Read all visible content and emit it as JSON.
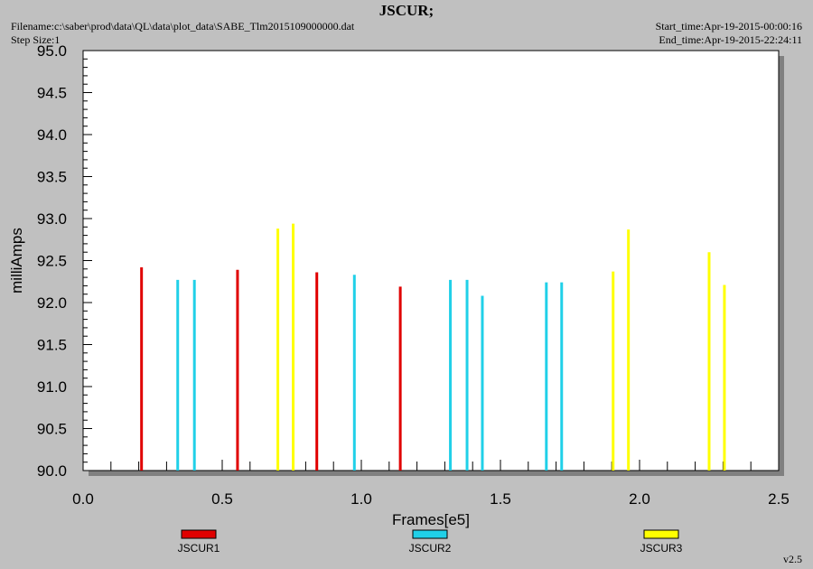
{
  "header": {
    "title": "JSCUR;",
    "filename": "Filename:c:\\saber\\prod\\data\\QL\\data\\plot_data\\SABE_Tlm2015109000000.dat",
    "step_size": "Step Size:1",
    "start_time": "Start_time:Apr-19-2015-00:00:16",
    "end_time": "End_time:Apr-19-2015-22:24:11",
    "version": "v2.5"
  },
  "chart_data": {
    "type": "bar",
    "title": "JSCUR;",
    "xlabel": "Frames[e5]",
    "ylabel": "milliAmps",
    "xlim": [
      0.0,
      2.5
    ],
    "ylim": [
      90.0,
      95.0
    ],
    "xticks": [
      "0.0",
      "0.5",
      "1.0",
      "1.5",
      "2.0",
      "2.5"
    ],
    "yticks": [
      "90.0",
      "90.5",
      "91.0",
      "91.5",
      "92.0",
      "92.5",
      "93.0",
      "93.5",
      "94.0",
      "94.5",
      "95.0"
    ],
    "grid": false,
    "legend_position": "bottom",
    "series": [
      {
        "name": "JSCUR1",
        "color": "#e00000",
        "x": [
          0.21,
          0.555,
          0.84,
          1.14
        ],
        "values": [
          92.42,
          92.39,
          92.36,
          92.19
        ]
      },
      {
        "name": "JSCUR2",
        "color": "#20d0e8",
        "x": [
          0.34,
          0.4,
          0.975,
          1.32,
          1.38,
          1.435,
          1.665,
          1.72
        ],
        "values": [
          92.27,
          92.27,
          92.33,
          92.27,
          92.27,
          92.08,
          92.24,
          92.24
        ]
      },
      {
        "name": "JSCUR3",
        "color": "#ffff00",
        "x": [
          0.7,
          0.755,
          1.905,
          1.96,
          2.25,
          2.305
        ],
        "values": [
          92.88,
          92.94,
          92.37,
          92.87,
          92.6,
          92.21
        ]
      }
    ]
  }
}
